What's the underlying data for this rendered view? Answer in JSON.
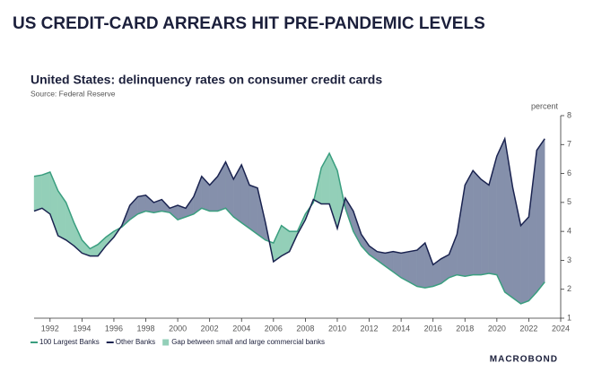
{
  "header": "US CREDIT-CARD ARREARS HIT PRE-PANDEMIC LEVELS",
  "chart_data": {
    "type": "line",
    "title": "United States: delinquency rates on consumer credit cards",
    "subtitle": "Source: Federal Reserve",
    "y_label": "percent",
    "gap_label": "Gap between small and large commercial banks",
    "brand": "MACROBOND",
    "x": [
      1991,
      1991.5,
      1992,
      1992.5,
      1993,
      1993.5,
      1994,
      1994.5,
      1995,
      1995.5,
      1996,
      1996.5,
      1997,
      1997.5,
      1998,
      1998.5,
      1999,
      1999.5,
      2000,
      2000.5,
      2001,
      2001.5,
      2002,
      2002.5,
      2003,
      2003.5,
      2004,
      2004.5,
      2005,
      2005.5,
      2006,
      2006.5,
      2007,
      2007.5,
      2008,
      2008.5,
      2009,
      2009.5,
      2010,
      2010.5,
      2011,
      2011.5,
      2012,
      2012.5,
      2013,
      2013.5,
      2014,
      2014.5,
      2015,
      2015.5,
      2016,
      2016.5,
      2017,
      2017.5,
      2018,
      2018.5,
      2019,
      2019.5,
      2020,
      2020.5,
      2021,
      2021.5,
      2022,
      2022.5,
      2023
    ],
    "series": [
      {
        "name": "100 Largest Banks",
        "color": "#3a9e7f",
        "gap_color": "#93cfb8",
        "values": [
          5.9,
          5.95,
          6.05,
          5.4,
          5.0,
          4.3,
          3.7,
          3.4,
          3.55,
          3.8,
          4.0,
          4.15,
          4.4,
          4.6,
          4.7,
          4.65,
          4.7,
          4.65,
          4.4,
          4.5,
          4.6,
          4.8,
          4.7,
          4.7,
          4.8,
          4.5,
          4.3,
          4.1,
          3.9,
          3.7,
          3.6,
          4.2,
          4.0,
          4.0,
          4.6,
          5.0,
          6.2,
          6.7,
          6.1,
          4.8,
          4.0,
          3.5,
          3.2,
          3.0,
          2.8,
          2.6,
          2.4,
          2.25,
          2.1,
          2.05,
          2.1,
          2.2,
          2.4,
          2.5,
          2.45,
          2.5,
          2.5,
          2.55,
          2.5,
          1.9,
          1.7,
          1.5,
          1.6,
          1.9,
          2.25
        ]
      },
      {
        "name": "Other Banks",
        "color": "#1a2350",
        "gap_color": "#8590ab",
        "values": [
          4.7,
          4.8,
          4.6,
          3.85,
          3.7,
          3.5,
          3.25,
          3.15,
          3.15,
          3.5,
          3.8,
          4.2,
          4.9,
          5.2,
          5.25,
          5.0,
          5.1,
          4.8,
          4.9,
          4.8,
          5.2,
          5.9,
          5.6,
          5.9,
          6.4,
          5.8,
          6.3,
          5.6,
          5.5,
          4.3,
          2.95,
          3.15,
          3.3,
          3.9,
          4.4,
          5.1,
          4.95,
          4.95,
          4.1,
          5.15,
          4.7,
          3.9,
          3.5,
          3.3,
          3.25,
          3.3,
          3.25,
          3.3,
          3.35,
          3.6,
          2.85,
          3.05,
          3.2,
          3.9,
          5.6,
          6.1,
          5.8,
          5.6,
          6.6,
          7.2,
          5.5,
          4.2,
          4.5,
          6.8,
          7.2
        ]
      }
    ],
    "xlim": [
      1991,
      2024
    ],
    "ylim": [
      1,
      8
    ],
    "xticks": [
      1992,
      1994,
      1996,
      1998,
      2000,
      2002,
      2004,
      2006,
      2008,
      2010,
      2012,
      2014,
      2016,
      2018,
      2020,
      2022,
      2024
    ],
    "yticks": [
      1,
      2,
      3,
      4,
      5,
      6,
      7,
      8
    ]
  }
}
